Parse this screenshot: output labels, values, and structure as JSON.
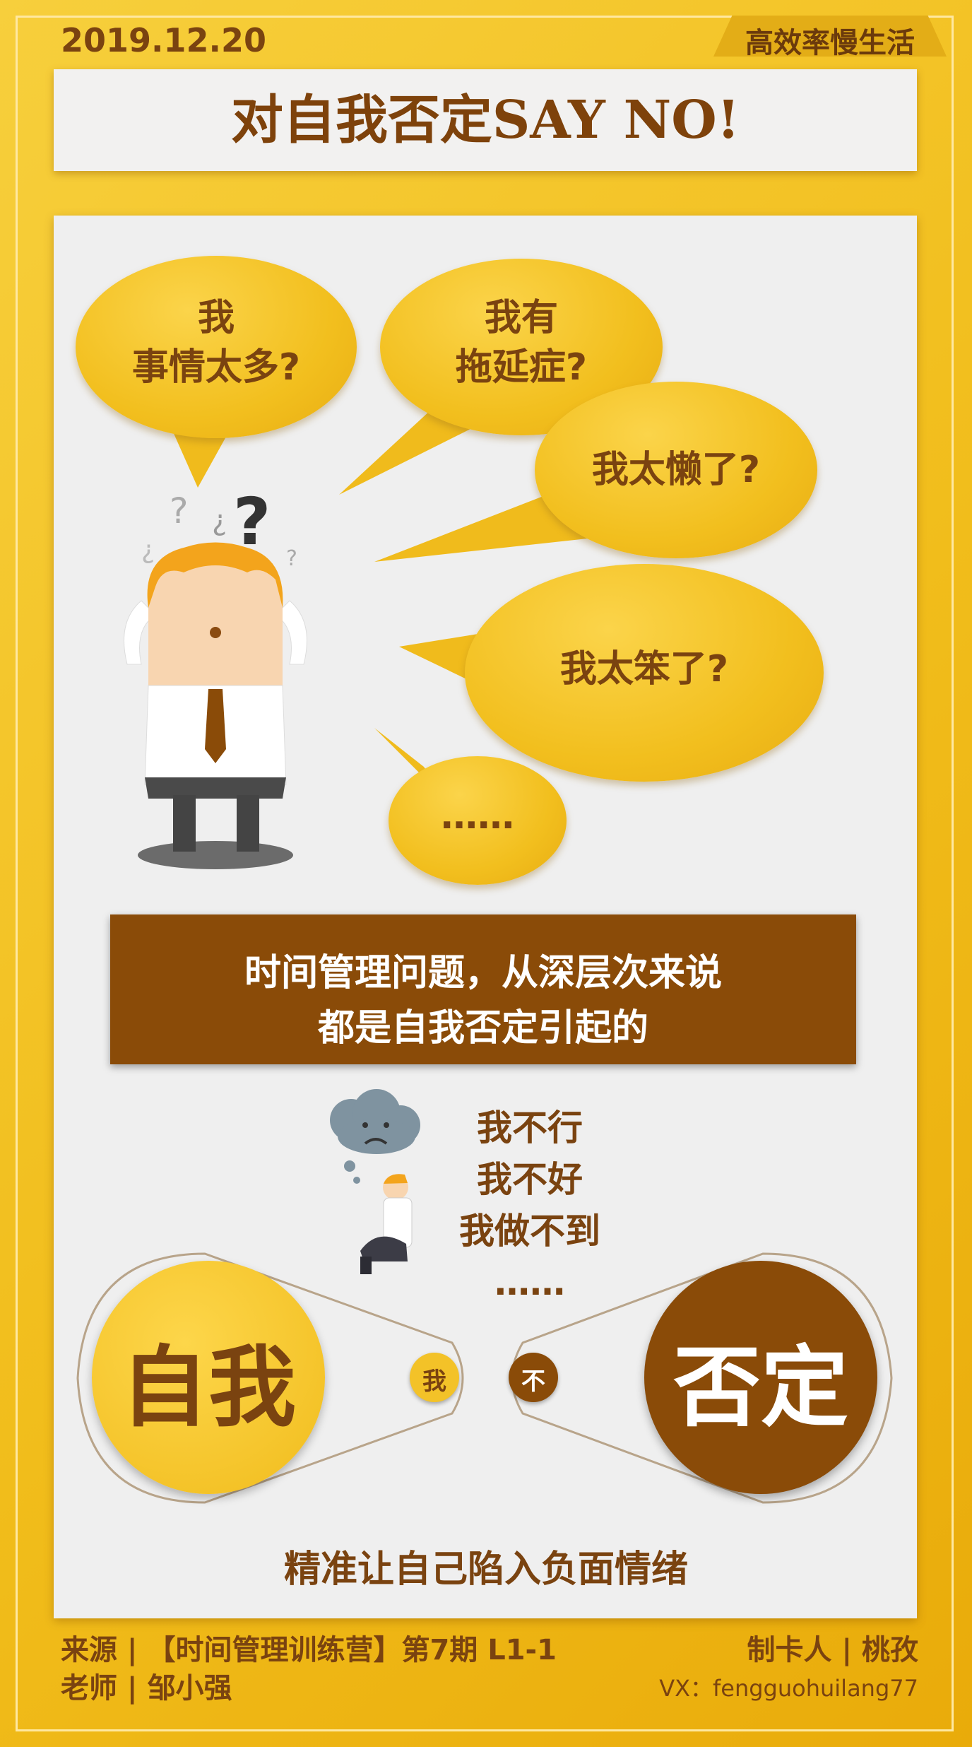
{
  "header": {
    "date": "2019.12.20",
    "tag": "高效率慢生活",
    "title": "对自我否定SAY NO!"
  },
  "bubbles": {
    "b1": "我\n事情太多?",
    "b2": "我有\n拖延症?",
    "b3": "我太懒了?",
    "b4": "我太笨了?",
    "b5": "……"
  },
  "banner": {
    "line1": "时间管理问题，从深层次来说",
    "line2": "都是自我否定引起的"
  },
  "negatives": [
    "我不行",
    "我不好",
    "我做不到",
    "……"
  ],
  "diagram": {
    "left_big": "自我",
    "left_small": "我",
    "right_small": "不",
    "right_big": "否定"
  },
  "summary": "精准让自己陷入负面情绪",
  "footer": {
    "source": "来源 | 【时间管理训练营】第7期  L1-1",
    "teacher": "老师 | 邹小强",
    "maker": "制卡人 | 桃孜",
    "vx": "VX：fengguohuilang77"
  },
  "colors": {
    "gold": "#f2bf1e",
    "brown": "#8a4b08",
    "text_brown": "#7a4310"
  }
}
